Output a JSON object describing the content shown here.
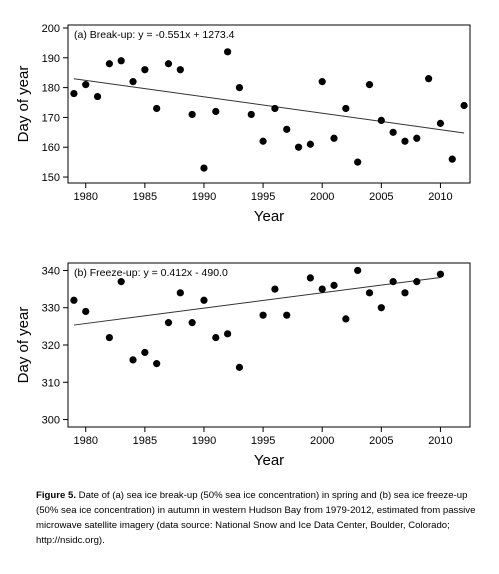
{
  "chart_data": [
    {
      "type": "scatter",
      "title": "(a) Break-up: y = -0.551x + 1273.4",
      "xlabel": "Year",
      "ylabel": "Day of year",
      "xlim": [
        1978.5,
        2012.5
      ],
      "ylim": [
        148,
        201
      ],
      "xticks": [
        1980,
        1985,
        1990,
        1995,
        2000,
        2005,
        2010
      ],
      "yticks": [
        150,
        160,
        170,
        180,
        190,
        200
      ],
      "trendline": {
        "slope": -0.551,
        "intercept": 1273.4
      },
      "x": [
        1979,
        1980,
        1981,
        1982,
        1983,
        1984,
        1985,
        1986,
        1987,
        1988,
        1989,
        1990,
        1991,
        1992,
        1993,
        1994,
        1995,
        1996,
        1997,
        1998,
        1999,
        2000,
        2001,
        2002,
        2003,
        2004,
        2005,
        2006,
        2007,
        2008,
        2009,
        2010,
        2011,
        2012
      ],
      "y": [
        178,
        181,
        177,
        188,
        189,
        182,
        186,
        173,
        188,
        186,
        171,
        153,
        172,
        192,
        180,
        171,
        162,
        173,
        166,
        160,
        161,
        182,
        163,
        173,
        155,
        181,
        169,
        165,
        162,
        163,
        183,
        168,
        156,
        174
      ]
    },
    {
      "type": "scatter",
      "title": "(b) Freeze-up: y = 0.412x - 490.0",
      "xlabel": "Year",
      "ylabel": "Day of year",
      "xlim": [
        1978.5,
        2012.5
      ],
      "ylim": [
        298,
        342
      ],
      "xticks": [
        1980,
        1985,
        1990,
        1995,
        2000,
        2005,
        2010
      ],
      "yticks": [
        300,
        310,
        320,
        330,
        340
      ],
      "trendline": {
        "slope": 0.412,
        "intercept": -490.0
      },
      "x": [
        1979,
        1980,
        1982,
        1983,
        1984,
        1985,
        1986,
        1987,
        1988,
        1989,
        1990,
        1991,
        1992,
        1993,
        1995,
        1996,
        1997,
        1999,
        2000,
        2001,
        2002,
        2003,
        2004,
        2005,
        2006,
        2007,
        2008,
        2010
      ],
      "y": [
        332,
        329,
        322,
        337,
        316,
        318,
        315,
        326,
        334,
        326,
        332,
        322,
        323,
        314,
        328,
        335,
        328,
        338,
        335,
        336,
        327,
        340,
        334,
        330,
        337,
        334,
        337,
        339
      ]
    }
  ],
  "caption": {
    "label": "Figure 5.",
    "text": "Date of (a) sea ice break-up (50% sea ice concentration) in spring and (b) sea ice freeze-up (50% sea ice concentration) in autumn in western Hudson Bay from 1979-2012, estimated from passive microwave satellite imagery (data source: National Snow and Ice Data Center, Boulder, Colorado; http://nsidc.org)."
  },
  "colors": {
    "points": "#000000",
    "axis": "#000000",
    "trend": "#333333"
  }
}
